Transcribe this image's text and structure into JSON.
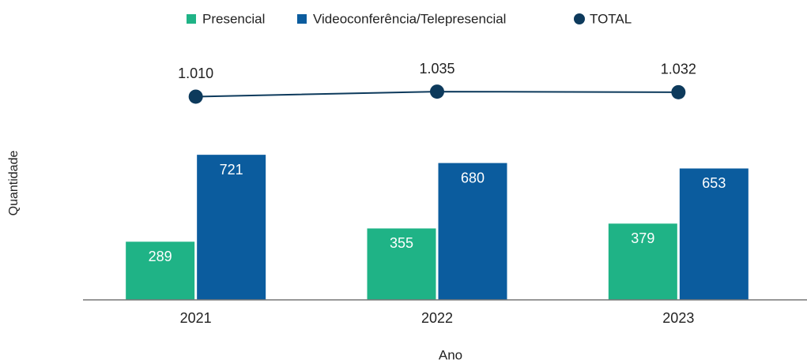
{
  "chart_data": {
    "type": "bar",
    "categories": [
      "2021",
      "2022",
      "2023"
    ],
    "series": [
      {
        "name": "Presencial",
        "color": "#1fb386",
        "values": [
          289,
          355,
          379
        ]
      },
      {
        "name": "Videoconferência/Telepresencial",
        "color": "#0b5c9e",
        "values": [
          721,
          680,
          653
        ]
      },
      {
        "name": "TOTAL",
        "type": "line",
        "color": "#0d3a5c",
        "values": [
          1010,
          1035,
          1032
        ],
        "value_labels": [
          "1.010",
          "1.035",
          "1.032"
        ]
      }
    ],
    "x_label": "Ano",
    "y_label": "Quantidade",
    "ylim": [
      0,
      1200
    ],
    "legend": "top"
  }
}
